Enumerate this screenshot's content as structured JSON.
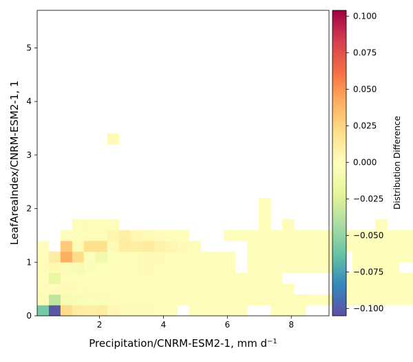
{
  "chart_data": {
    "type": "heatmap",
    "title": "",
    "xlabel_main": "Precipitation/CNRM-ESM2-1,  mm d",
    "xlabel_sup": "−1",
    "ylabel": "LeafAreaIndex/CNRM-ESM2-1,  1",
    "colorbar_label": "Distribution Difference",
    "colormap": "Spectral_r",
    "xlim": [
      0.05,
      9.18
    ],
    "ylim": [
      0,
      5.7
    ],
    "x_ticks": [
      2,
      4,
      6,
      8
    ],
    "x_tick_labels": [
      "2",
      "4",
      "6",
      "8"
    ],
    "y_ticks": [
      0,
      1,
      2,
      3,
      4,
      5
    ],
    "y_tick_labels": [
      "0",
      "1",
      "2",
      "3",
      "4",
      "5"
    ],
    "clim": [
      -0.105,
      0.104
    ],
    "colorbar_ticks": [
      0.1,
      0.075,
      0.05,
      0.025,
      0,
      -0.025,
      -0.05,
      -0.075,
      -0.1
    ],
    "colorbar_tick_labels": [
      "0.100",
      "0.075",
      "0.050",
      "0.025",
      "0.000",
      "−0.025",
      "−0.050",
      "−0.075",
      "−0.100"
    ],
    "bin_width_x": 0.365,
    "bin_height_y": 0.2,
    "x_bin_start": 0.05,
    "cells": [
      [
        0,
        0,
        -0.058
      ],
      [
        1,
        0,
        -0.102
      ],
      [
        2,
        0,
        0.022
      ],
      [
        3,
        0,
        0.012
      ],
      [
        4,
        0,
        0.01
      ],
      [
        5,
        0,
        0.012
      ],
      [
        6,
        0,
        0.004
      ],
      [
        7,
        0,
        0.003
      ],
      [
        8,
        0,
        0.003
      ],
      [
        9,
        0,
        0.003
      ],
      [
        10,
        0,
        0.002
      ],
      [
        11,
        0,
        0.002
      ],
      [
        13,
        0,
        0.001
      ],
      [
        14,
        0,
        0.001
      ],
      [
        15,
        0,
        0.001
      ],
      [
        16,
        0,
        0.001
      ],
      [
        17,
        0,
        0.001
      ],
      [
        20,
        0,
        0.001
      ],
      [
        21,
        0,
        0.001
      ],
      [
        22,
        0,
        0.001
      ],
      [
        0,
        1,
        -0.005
      ],
      [
        1,
        1,
        -0.035
      ],
      [
        2,
        1,
        -0.008
      ],
      [
        3,
        1,
        -0.006
      ],
      [
        4,
        1,
        -0.004
      ],
      [
        5,
        1,
        -0.005
      ],
      [
        6,
        1,
        0.002
      ],
      [
        7,
        1,
        0.002
      ],
      [
        8,
        1,
        0.002
      ],
      [
        9,
        1,
        0.002
      ],
      [
        10,
        1,
        0.002
      ],
      [
        11,
        1,
        0.002
      ],
      [
        12,
        1,
        0.002
      ],
      [
        13,
        1,
        0.002
      ],
      [
        14,
        1,
        0.002
      ],
      [
        15,
        1,
        0.002
      ],
      [
        16,
        1,
        0.002
      ],
      [
        17,
        1,
        0.002
      ],
      [
        18,
        1,
        0.002
      ],
      [
        19,
        1,
        0.002
      ],
      [
        20,
        1,
        0.002
      ],
      [
        21,
        1,
        0.002
      ],
      [
        22,
        1,
        0.002
      ],
      [
        23,
        1,
        0.001
      ],
      [
        24,
        1,
        0.001
      ],
      [
        25,
        1,
        0.001
      ],
      [
        26,
        1,
        0.001
      ],
      [
        27,
        1,
        0.001
      ],
      [
        28,
        1,
        0.001
      ],
      [
        29,
        1,
        0.001
      ],
      [
        30,
        1,
        0.001
      ],
      [
        31,
        1,
        0.001
      ],
      [
        32,
        1,
        0.001
      ],
      [
        33,
        1,
        0.001
      ],
      [
        34,
        1,
        0.001
      ],
      [
        0,
        2,
        0.002
      ],
      [
        1,
        2,
        0.002
      ],
      [
        2,
        2,
        0.003
      ],
      [
        3,
        2,
        0.002
      ],
      [
        4,
        2,
        0.002
      ],
      [
        5,
        2,
        0.002
      ],
      [
        6,
        2,
        0.001
      ],
      [
        7,
        2,
        0.001
      ],
      [
        8,
        2,
        0.001
      ],
      [
        9,
        2,
        0.001
      ],
      [
        10,
        2,
        0.001
      ],
      [
        11,
        2,
        0.001
      ],
      [
        12,
        2,
        0.001
      ],
      [
        13,
        2,
        0.001
      ],
      [
        14,
        2,
        0.001
      ],
      [
        15,
        2,
        0.001
      ],
      [
        16,
        2,
        0.001
      ],
      [
        17,
        2,
        0.001
      ],
      [
        18,
        2,
        0.001
      ],
      [
        19,
        2,
        0.001
      ],
      [
        20,
        2,
        0.001
      ],
      [
        21,
        2,
        0.001
      ],
      [
        26,
        2,
        0.001
      ],
      [
        27,
        2,
        0.001
      ],
      [
        28,
        2,
        0.001
      ],
      [
        29,
        2,
        0.001
      ],
      [
        30,
        2,
        0.001
      ],
      [
        31,
        2,
        0.001
      ],
      [
        32,
        2,
        0.001
      ],
      [
        33,
        2,
        0.001
      ],
      [
        34,
        2,
        0.001
      ],
      [
        0,
        3,
        0.001
      ],
      [
        1,
        3,
        -0.018
      ],
      [
        2,
        3,
        0.002
      ],
      [
        3,
        3,
        0.002
      ],
      [
        4,
        3,
        0.001
      ],
      [
        5,
        3,
        -0.003
      ],
      [
        6,
        3,
        0.002
      ],
      [
        7,
        3,
        0.002
      ],
      [
        8,
        3,
        0.002
      ],
      [
        9,
        3,
        0.002
      ],
      [
        10,
        3,
        0.002
      ],
      [
        11,
        3,
        0.002
      ],
      [
        12,
        3,
        0.002
      ],
      [
        13,
        3,
        0.001
      ],
      [
        14,
        3,
        0.001
      ],
      [
        15,
        3,
        0.001
      ],
      [
        16,
        3,
        0.001
      ],
      [
        17,
        3,
        0.001
      ],
      [
        18,
        3,
        0.001
      ],
      [
        19,
        3,
        0.001
      ],
      [
        20,
        3,
        0.001
      ],
      [
        26,
        3,
        0.001
      ],
      [
        27,
        3,
        0.001
      ],
      [
        28,
        3,
        0.001
      ],
      [
        29,
        3,
        0.001
      ],
      [
        30,
        3,
        0.001
      ],
      [
        31,
        3,
        0.001
      ],
      [
        32,
        3,
        0.001
      ],
      [
        33,
        3,
        0.001
      ],
      [
        34,
        3,
        0.001
      ],
      [
        0,
        4,
        0.002
      ],
      [
        1,
        4,
        0.004
      ],
      [
        2,
        4,
        -0.005
      ],
      [
        3,
        4,
        -0.008
      ],
      [
        4,
        4,
        -0.005
      ],
      [
        5,
        4,
        -0.003
      ],
      [
        6,
        4,
        -0.002
      ],
      [
        7,
        4,
        0.002
      ],
      [
        8,
        4,
        0.002
      ],
      [
        9,
        4,
        0.003
      ],
      [
        10,
        4,
        0.002
      ],
      [
        11,
        4,
        0.002
      ],
      [
        12,
        4,
        0.001
      ],
      [
        13,
        4,
        0.001
      ],
      [
        14,
        4,
        0.001
      ],
      [
        15,
        4,
        0.001
      ],
      [
        16,
        4,
        0.001
      ],
      [
        18,
        4,
        0.001
      ],
      [
        19,
        4,
        0.001
      ],
      [
        20,
        4,
        0.001
      ],
      [
        21,
        4,
        0.001
      ],
      [
        22,
        4,
        0.001
      ],
      [
        23,
        4,
        0.001
      ],
      [
        24,
        4,
        0.001
      ],
      [
        25,
        4,
        0.001
      ],
      [
        27,
        4,
        0.001
      ],
      [
        28,
        4,
        0.001
      ],
      [
        29,
        4,
        0.001
      ],
      [
        30,
        4,
        0.001
      ],
      [
        0,
        5,
        0.002
      ],
      [
        1,
        5,
        0.012
      ],
      [
        2,
        5,
        0.041
      ],
      [
        3,
        5,
        0.022
      ],
      [
        4,
        5,
        -0.004
      ],
      [
        5,
        5,
        -0.012
      ],
      [
        6,
        5,
        -0.003
      ],
      [
        7,
        5,
        0.002
      ],
      [
        8,
        5,
        0.002
      ],
      [
        9,
        5,
        0.003
      ],
      [
        10,
        5,
        0.003
      ],
      [
        11,
        5,
        0.001
      ],
      [
        12,
        5,
        0.001
      ],
      [
        13,
        5,
        0.001
      ],
      [
        14,
        5,
        0.001
      ],
      [
        15,
        5,
        0.001
      ],
      [
        16,
        5,
        0.001
      ],
      [
        18,
        5,
        0.001
      ],
      [
        19,
        5,
        0.001
      ],
      [
        20,
        5,
        0.001
      ],
      [
        21,
        5,
        0.001
      ],
      [
        22,
        5,
        0.001
      ],
      [
        23,
        5,
        0.001
      ],
      [
        24,
        5,
        0.001
      ],
      [
        25,
        5,
        0.001
      ],
      [
        27,
        5,
        0.001
      ],
      [
        28,
        5,
        0.001
      ],
      [
        29,
        5,
        0.001
      ],
      [
        30,
        5,
        0.001
      ],
      [
        31,
        5,
        0.001
      ],
      [
        32,
        5,
        0.001
      ],
      [
        33,
        5,
        0.001
      ],
      [
        34,
        5,
        0.001
      ],
      [
        35,
        5,
        0.001
      ],
      [
        0,
        6,
        0.001
      ],
      [
        2,
        6,
        0.03
      ],
      [
        3,
        6,
        0.003
      ],
      [
        4,
        6,
        0.02
      ],
      [
        5,
        6,
        0.02
      ],
      [
        6,
        6,
        0.003
      ],
      [
        7,
        6,
        0.012
      ],
      [
        8,
        6,
        0.01
      ],
      [
        9,
        6,
        0.013
      ],
      [
        10,
        6,
        0.008
      ],
      [
        11,
        6,
        0.005
      ],
      [
        12,
        6,
        0.003
      ],
      [
        13,
        6,
        0.002
      ],
      [
        18,
        6,
        0.001
      ],
      [
        19,
        6,
        0.001
      ],
      [
        20,
        6,
        0.001
      ],
      [
        21,
        6,
        0.001
      ],
      [
        22,
        6,
        0.001
      ],
      [
        23,
        6,
        0.001
      ],
      [
        24,
        6,
        0.001
      ],
      [
        25,
        6,
        0.001
      ],
      [
        26,
        6,
        0.001
      ],
      [
        27,
        6,
        0.001
      ],
      [
        28,
        6,
        0.001
      ],
      [
        29,
        6,
        0.001
      ],
      [
        30,
        6,
        0.001
      ],
      [
        31,
        6,
        0.001
      ],
      [
        32,
        6,
        0.003
      ],
      [
        33,
        6,
        0.001
      ],
      [
        2,
        7,
        0.001
      ],
      [
        3,
        7,
        -0.003
      ],
      [
        4,
        7,
        0.002
      ],
      [
        5,
        7,
        0.002
      ],
      [
        6,
        7,
        0.006
      ],
      [
        7,
        7,
        0.01
      ],
      [
        8,
        7,
        0.004
      ],
      [
        9,
        7,
        0.003
      ],
      [
        10,
        7,
        0.002
      ],
      [
        11,
        7,
        0.002
      ],
      [
        12,
        7,
        0.001
      ],
      [
        16,
        7,
        0.001
      ],
      [
        17,
        7,
        0.001
      ],
      [
        18,
        7,
        0.001
      ],
      [
        19,
        7,
        0.001
      ],
      [
        20,
        7,
        0.001
      ],
      [
        21,
        7,
        0.001
      ],
      [
        22,
        7,
        0.001
      ],
      [
        23,
        7,
        0.001
      ],
      [
        24,
        7,
        0.001
      ],
      [
        25,
        7,
        0.001
      ],
      [
        26,
        7,
        0.001
      ],
      [
        27,
        7,
        0.001
      ],
      [
        28,
        7,
        0.001
      ],
      [
        29,
        7,
        0.001
      ],
      [
        30,
        7,
        0.001
      ],
      [
        31,
        7,
        0.001
      ],
      [
        32,
        7,
        0.001
      ],
      [
        33,
        7,
        0.001
      ],
      [
        3,
        8,
        0.002
      ],
      [
        4,
        8,
        0.002
      ],
      [
        5,
        8,
        0.002
      ],
      [
        6,
        8,
        0.002
      ],
      [
        19,
        8,
        0.002
      ],
      [
        21,
        8,
        0.002
      ],
      [
        29,
        8,
        0.002
      ],
      [
        19,
        9,
        0.002
      ],
      [
        19,
        10,
        0.002
      ],
      [
        6,
        16,
        0.003
      ]
    ]
  }
}
